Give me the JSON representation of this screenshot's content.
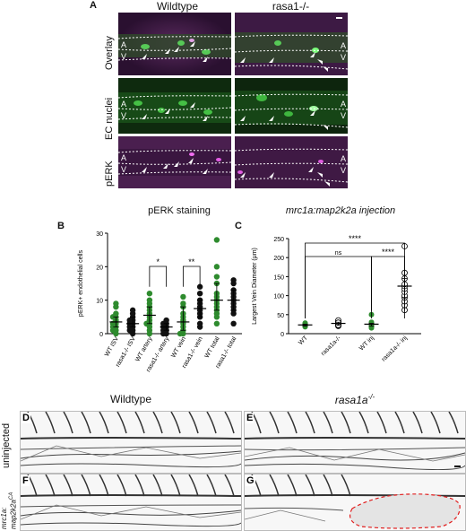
{
  "panelA": {
    "letter": "A",
    "col_titles": [
      "Wildtype",
      "rasa1-/-"
    ],
    "row_labels": [
      "Overlay",
      "EC nuclei",
      "pERK"
    ],
    "vessel_marks": [
      "A",
      "V"
    ]
  },
  "panelB": {
    "letter": "B",
    "title": "pERK staining"
  },
  "panelC": {
    "letter": "C",
    "title": "mrc1a:map2k2a injection"
  },
  "panelDG": {
    "letters": [
      "D",
      "E",
      "F",
      "G"
    ],
    "col_titles": [
      "Wildtype",
      "rasa1a"
    ],
    "col_title_superscript": "-/-",
    "row_labels": [
      "uninjected",
      "mrc1a:",
      "map2k2a"
    ],
    "row_label_superscript": "CA"
  },
  "colors": {
    "wt_green": "#2e8b2e",
    "mutant_black": "#111111",
    "magenta": "#c22fbf",
    "eye_green": "#3bd23b",
    "outline_red": "#e11d1d"
  },
  "chart_data": [
    {
      "type": "scatter",
      "title": "pERK staining",
      "ylabel": "pERK+ endothelial cells",
      "ylim": [
        0,
        30
      ],
      "yticks": [
        0,
        10,
        20,
        30
      ],
      "categories": [
        "WT ISV",
        "rasa1-/- ISV",
        "WT artery",
        "rasa1-/- artery",
        "WT vein",
        "rasa1-/- vein",
        "WT total",
        "rasa1-/- total"
      ],
      "colors": [
        "green",
        "black",
        "green",
        "black",
        "green",
        "black",
        "green",
        "black"
      ],
      "points": [
        [
          0,
          1,
          1,
          2,
          2,
          3,
          3,
          4,
          5,
          5,
          6,
          8,
          9
        ],
        [
          0,
          1,
          1,
          2,
          2,
          3,
          3,
          4,
          4,
          5,
          6,
          7
        ],
        [
          0,
          1,
          2,
          3,
          3,
          4,
          5,
          6,
          7,
          8,
          9,
          10,
          12
        ],
        [
          0,
          0,
          1,
          1,
          2,
          2,
          3,
          3,
          4
        ],
        [
          0,
          0,
          1,
          2,
          3,
          4,
          5,
          6,
          8,
          9,
          11
        ],
        [
          2,
          3,
          5,
          6,
          7,
          8,
          9,
          10,
          12,
          14
        ],
        [
          3,
          5,
          6,
          7,
          8,
          9,
          10,
          11,
          12,
          15,
          17,
          20,
          28
        ],
        [
          3,
          6,
          7,
          8,
          9,
          10,
          11,
          12,
          13,
          15,
          16
        ]
      ],
      "means": [
        3.5,
        3,
        5.5,
        2,
        3.5,
        7.5,
        10,
        10
      ],
      "significance": [
        {
          "from": 2,
          "to": 3,
          "label": "*"
        },
        {
          "from": 4,
          "to": 5,
          "label": "**"
        }
      ]
    },
    {
      "type": "scatter",
      "title": "mrc1a:map2k2a injection",
      "ylabel": "Largest Vein Diameter (μm)",
      "ylim": [
        0,
        250
      ],
      "yticks": [
        0,
        50,
        100,
        150,
        200,
        250
      ],
      "categories": [
        "WT",
        "rasa1a-/-",
        "WT inj",
        "rasa1a-/- inj"
      ],
      "colors": [
        "green",
        "open",
        "green",
        "open"
      ],
      "points": [
        [
          18,
          20,
          22,
          23,
          24,
          25,
          26,
          28,
          21,
          19
        ],
        [
          20,
          22,
          24,
          25,
          27,
          28,
          30,
          33,
          35,
          26,
          23,
          29
        ],
        [
          15,
          18,
          20,
          22,
          24,
          25,
          27,
          30,
          50
        ],
        [
          62,
          75,
          85,
          95,
          100,
          110,
          118,
          125,
          130,
          145,
          160,
          230
        ]
      ],
      "means": [
        23,
        27,
        25,
        125
      ],
      "significance": [
        {
          "from": 0,
          "to": 2,
          "label": "ns"
        },
        {
          "from": 0,
          "to": 3,
          "label": "****"
        },
        {
          "from": 2,
          "to": 3,
          "label": "****"
        }
      ]
    }
  ]
}
